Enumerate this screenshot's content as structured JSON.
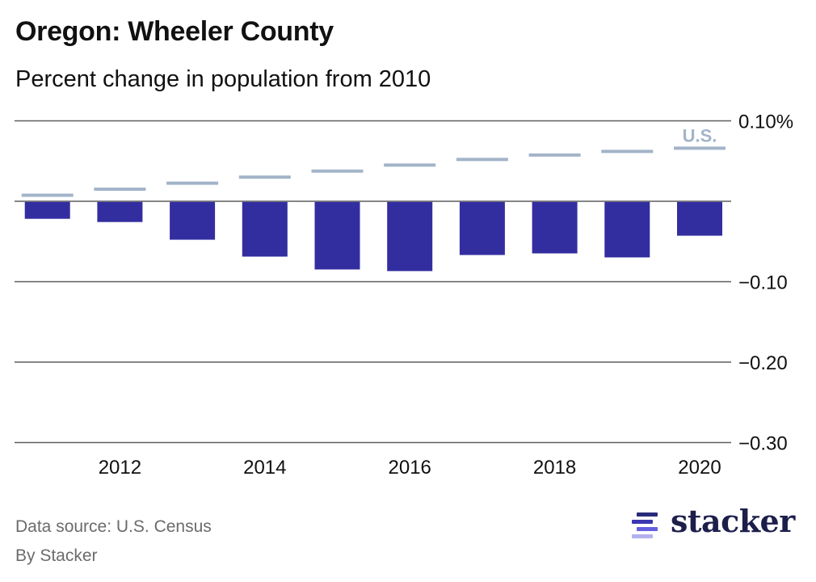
{
  "header": {
    "title": "Oregon: Wheeler County",
    "subtitle": "Percent change in population from 2010"
  },
  "footer": {
    "source": "Data source: U.S. Census",
    "byline": "By Stacker",
    "logo_text": "stacker"
  },
  "colors": {
    "county_bar": "#332ea0",
    "us_marker": "#a3b4c9",
    "gridline": "#5e5e5e",
    "logo_dark": "#1c1f4a",
    "logo_bars": [
      "#2a2a7a",
      "#3c36b0",
      "#6560e0",
      "#b3b0f0"
    ]
  },
  "chart_data": {
    "type": "bar",
    "title": "Oregon: Wheeler County",
    "subtitle": "Percent change in population from 2010",
    "xlabel": "",
    "ylabel": "",
    "categories": [
      "2011",
      "2012",
      "2013",
      "2014",
      "2015",
      "2016",
      "2017",
      "2018",
      "2019",
      "2020"
    ],
    "series": [
      {
        "name": "Wheeler County",
        "type": "bar",
        "values": [
          -0.021,
          -0.025,
          -0.047,
          -0.068,
          -0.084,
          -0.086,
          -0.066,
          -0.064,
          -0.069,
          -0.042
        ]
      },
      {
        "name": "U.S.",
        "type": "marker",
        "values": [
          0.0075,
          0.015,
          0.0225,
          0.03,
          0.0375,
          0.045,
          0.052,
          0.0575,
          0.062,
          0.066
        ]
      }
    ],
    "ylim": [
      -0.3,
      0.1
    ],
    "yticks": [
      {
        "value": 0.1,
        "label": "0.10%"
      },
      {
        "value": 0.0,
        "label": ""
      },
      {
        "value": -0.1,
        "label": "−0.10"
      },
      {
        "value": -0.2,
        "label": "−0.20"
      },
      {
        "value": -0.3,
        "label": "−0.30"
      }
    ],
    "xtick_labels": [
      {
        "category": "2012",
        "label": "2012"
      },
      {
        "category": "2014",
        "label": "2014"
      },
      {
        "category": "2016",
        "label": "2016"
      },
      {
        "category": "2018",
        "label": "2018"
      },
      {
        "category": "2020",
        "label": "2020"
      }
    ],
    "series_label": {
      "series": "U.S.",
      "text": "U.S.",
      "category": "2020"
    },
    "grid": true,
    "legend": "inline-top-right"
  }
}
